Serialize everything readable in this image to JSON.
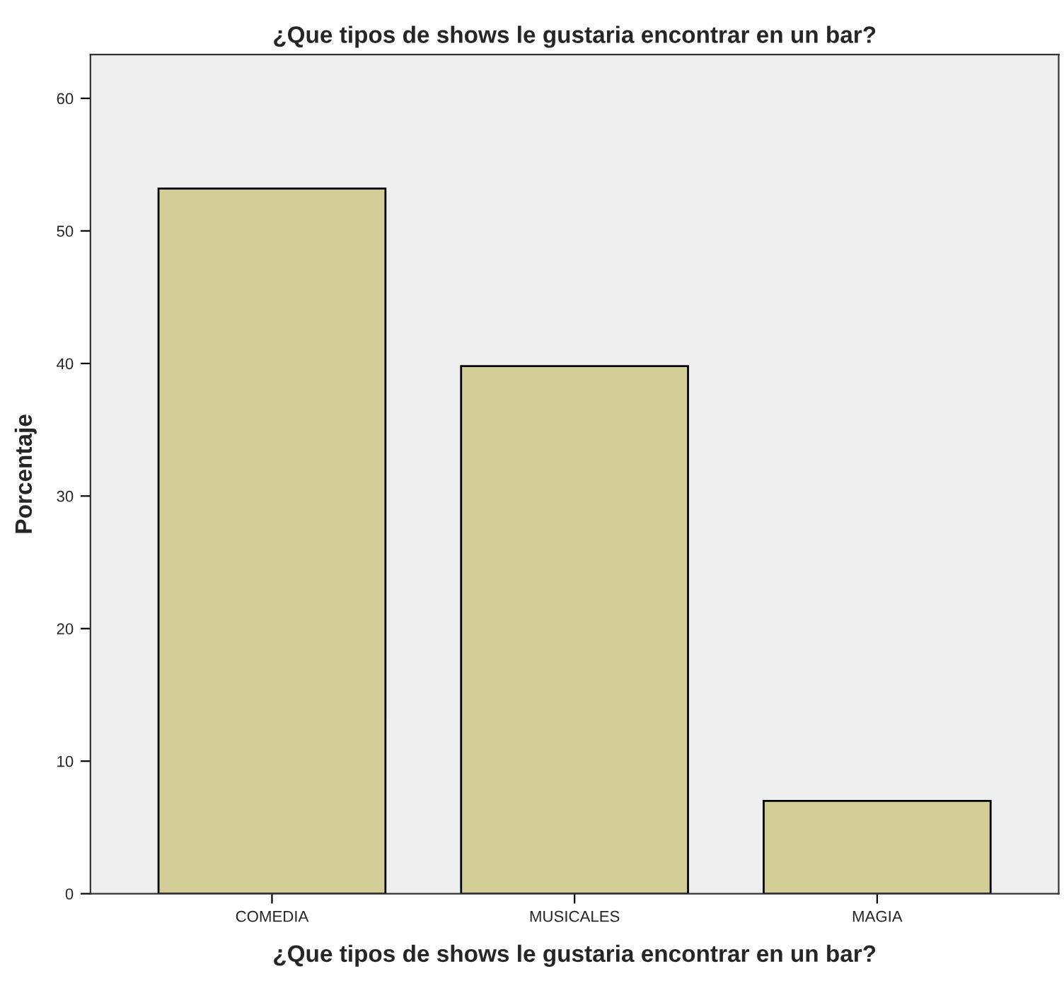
{
  "chart_data": {
    "type": "bar",
    "title": "¿Que tipos de shows le gustaria encontrar en un bar?",
    "xlabel": "¿Que tipos de shows le gustaria encontrar en un bar?",
    "ylabel": "Porcentaje",
    "categories": [
      "COMEDIA",
      "MUSICALES",
      "MAGIA"
    ],
    "values": [
      53.2,
      39.8,
      7.0
    ],
    "color": "#d3cd98",
    "ylim": [
      0,
      63.3
    ],
    "yticks": [
      0,
      10,
      20,
      30,
      40,
      50,
      60
    ],
    "grid": false
  }
}
